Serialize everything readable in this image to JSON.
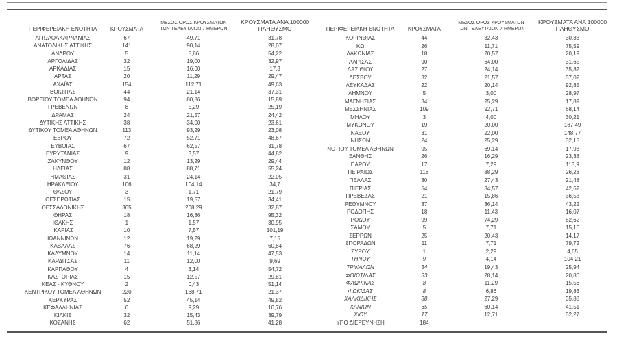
{
  "page": {
    "background": "#ffffff",
    "text_color": "#3c3c3c",
    "rule_dark_color": "#555555",
    "rule_gray_color": "#a8a8a8"
  },
  "headers": {
    "region": "ΠΕΡΙΦΕΡΕΙΑΚΗ ΕΝΟΤΗΤΑ",
    "cases": "ΚΡΟΥΣΜΑΤΑ",
    "avg7_line1": "ΜΕΣΟΣ ΟΡΟΣ ΚΡΟΥΣΜΑΤΩΝ",
    "avg7_line2": "ΤΩΝ ΤΕΛΕΥΤΑΙΩΝ 7 ΗΜΕΡΩΝ",
    "per100k_line1": "ΚΡΟΥΣΜΑΤΑ ΑΝΑ 100000",
    "per100k_line2": "ΠΛΗΘΥΣΜΟ"
  },
  "left_table": {
    "rows": [
      {
        "name": "ΑΙΤΩΛΟΑΚΑΡΝΑΝΙΑΣ",
        "cases": "67",
        "avg7": "49,71",
        "per100k": "31,78",
        "italic": false
      },
      {
        "name": "ΑΝΑΤΟΛΙΚΗΣ ΑΤΤΙΚΗΣ",
        "cases": "141",
        "avg7": "90,14",
        "per100k": "28,07",
        "italic": false
      },
      {
        "name": "ΑΝΔΡΟΥ",
        "cases": "5",
        "avg7": "5,86",
        "per100k": "54,22",
        "italic": false
      },
      {
        "name": "ΑΡΓΟΛΙΔΑΣ",
        "cases": "32",
        "avg7": "19,00",
        "per100k": "32,97",
        "italic": false
      },
      {
        "name": "ΑΡΚΑΔΙΑΣ",
        "cases": "15",
        "avg7": "16,00",
        "per100k": "17,3",
        "italic": false
      },
      {
        "name": "ΑΡΤΑΣ",
        "cases": "20",
        "avg7": "11,29",
        "per100k": "29,47",
        "italic": false
      },
      {
        "name": "ΑΧΑΪΑΣ",
        "cases": "154",
        "avg7": "112,71",
        "per100k": "49,63",
        "italic": false
      },
      {
        "name": "ΒΟΙΩΤΙΑΣ",
        "cases": "44",
        "avg7": "21,14",
        "per100k": "37,31",
        "italic": false
      },
      {
        "name": "ΒΟΡΕΙΟΥ ΤΟΜΕΑ ΑΘΗΝΩΝ",
        "cases": "94",
        "avg7": "80,86",
        "per100k": "15,89",
        "italic": false
      },
      {
        "name": "ΓΡΕΒΕΝΩΝ",
        "cases": "8",
        "avg7": "5,29",
        "per100k": "25,19",
        "italic": false
      },
      {
        "name": "ΔΡΑΜΑΣ",
        "cases": "24",
        "avg7": "21,57",
        "per100k": "24,42",
        "italic": false
      },
      {
        "name": "ΔΥΤΙΚΗΣ ΑΤΤΙΚΗΣ",
        "cases": "38",
        "avg7": "34,00",
        "per100k": "23,61",
        "italic": false
      },
      {
        "name": "ΔΥΤΙΚΟΥ ΤΟΜΕΑ ΑΘΗΝΩΝ",
        "cases": "113",
        "avg7": "93,29",
        "per100k": "23,08",
        "italic": false
      },
      {
        "name": "ΕΒΡΟΥ",
        "cases": "72",
        "avg7": "52,71",
        "per100k": "48,67",
        "italic": false
      },
      {
        "name": "ΕΥΒΟΙΑΣ",
        "cases": "67",
        "avg7": "62,57",
        "per100k": "31,78",
        "italic": false
      },
      {
        "name": "ΕΥΡΥΤΑΝΙΑΣ",
        "cases": "9",
        "avg7": "3,57",
        "per100k": "44,82",
        "italic": false
      },
      {
        "name": "ΖΑΚΥΝΘΟΥ",
        "cases": "12",
        "avg7": "13,29",
        "per100k": "29,44",
        "italic": false
      },
      {
        "name": "ΗΛΕΙΑΣ",
        "cases": "88",
        "avg7": "88,71",
        "per100k": "55,24",
        "italic": false
      },
      {
        "name": "ΗΜΑΘΙΑΣ",
        "cases": "31",
        "avg7": "24,14",
        "per100k": "22,05",
        "italic": false
      },
      {
        "name": "ΗΡΑΚΛΕΙΟΥ",
        "cases": "106",
        "avg7": "104,14",
        "per100k": "34,7",
        "italic": false
      },
      {
        "name": "ΘΑΣΟΥ",
        "cases": "3",
        "avg7": "1,71",
        "per100k": "21,79",
        "italic": false
      },
      {
        "name": "ΘΕΣΠΡΩΤΙΑΣ",
        "cases": "15",
        "avg7": "19,57",
        "per100k": "34,41",
        "italic": false
      },
      {
        "name": "ΘΕΣΣΑΛΟΝΙΚΗΣ",
        "cases": "365",
        "avg7": "268,29",
        "per100k": "32,87",
        "italic": false
      },
      {
        "name": "ΘΗΡΑΣ",
        "cases": "18",
        "avg7": "16,86",
        "per100k": "95,32",
        "italic": false
      },
      {
        "name": "ΙΘΑΚΗΣ",
        "cases": "1",
        "avg7": "1,57",
        "per100k": "30,95",
        "italic": false
      },
      {
        "name": "ΙΚΑΡΙΑΣ",
        "cases": "10",
        "avg7": "7,57",
        "per100k": "101,19",
        "italic": false
      },
      {
        "name": "ΙΩΑΝΝΙΝΩΝ",
        "cases": "12",
        "avg7": "19,29",
        "per100k": "7,15",
        "italic": false
      },
      {
        "name": "ΚΑΒΑΛΑΣ",
        "cases": "76",
        "avg7": "68,29",
        "per100k": "60,84",
        "italic": false
      },
      {
        "name": "ΚΑΛΥΜΝΟΥ",
        "cases": "14",
        "avg7": "11,14",
        "per100k": "47,53",
        "italic": false
      },
      {
        "name": "ΚΑΡΔΙΤΣΑΣ",
        "cases": "11",
        "avg7": "12,00",
        "per100k": "9,69",
        "italic": false
      },
      {
        "name": "ΚΑΡΠΑΘΟΥ",
        "cases": "4",
        "avg7": "3,14",
        "per100k": "54,72",
        "italic": false
      },
      {
        "name": "ΚΑΣΤΟΡΙΑΣ",
        "cases": "15",
        "avg7": "12,57",
        "per100k": "29,81",
        "italic": false
      },
      {
        "name": "ΚΕΑΣ - ΚΥΘΝΟΥ",
        "cases": "2",
        "avg7": "0,43",
        "per100k": "51,14",
        "italic": false
      },
      {
        "name": "ΚΕΝΤΡΙΚΟΥ ΤΟΜΕΑ ΑΘΗΝΩΝ",
        "cases": "220",
        "avg7": "168,71",
        "per100k": "21,37",
        "italic": false
      },
      {
        "name": "ΚΕΡΚΥΡΑΣ",
        "cases": "52",
        "avg7": "45,14",
        "per100k": "49,82",
        "italic": false
      },
      {
        "name": "ΚΕΦΑΛΛΗΝΙΑΣ",
        "cases": "6",
        "avg7": "9,29",
        "per100k": "16,76",
        "italic": false
      },
      {
        "name": "ΚΙΛΚΙΣ",
        "cases": "32",
        "avg7": "15,43",
        "per100k": "39,79",
        "italic": false
      },
      {
        "name": "ΚΟΖΑΝΗΣ",
        "cases": "62",
        "avg7": "51,86",
        "per100k": "41,28",
        "italic": false
      }
    ]
  },
  "right_table": {
    "rows": [
      {
        "name": "ΚΟΡΙΝΘΙΑΣ",
        "cases": "44",
        "avg7": "32,43",
        "per100k": "30,33",
        "italic": false
      },
      {
        "name": "ΚΩ",
        "cases": "26",
        "avg7": "11,71",
        "per100k": "75,59",
        "italic": false
      },
      {
        "name": "ΛΑΚΩΝΙΑΣ",
        "cases": "18",
        "avg7": "20,57",
        "per100k": "20,19",
        "italic": false
      },
      {
        "name": "ΛΑΡΙΣΑΣ",
        "cases": "90",
        "avg7": "64,00",
        "per100k": "31,65",
        "italic": false
      },
      {
        "name": "ΛΑΣΙΘΙΟΥ",
        "cases": "27",
        "avg7": "24,14",
        "per100k": "35,82",
        "italic": false
      },
      {
        "name": "ΛΕΣΒΟΥ",
        "cases": "32",
        "avg7": "21,57",
        "per100k": "37,02",
        "italic": false
      },
      {
        "name": "ΛΕΥΚΑΔΑΣ",
        "cases": "22",
        "avg7": "20,14",
        "per100k": "92,85",
        "italic": false
      },
      {
        "name": "ΛΗΜΝΟΥ",
        "cases": "5",
        "avg7": "3,00",
        "per100k": "28,97",
        "italic": false
      },
      {
        "name": "ΜΑΓΝΗΣΙΑΣ",
        "cases": "34",
        "avg7": "25,29",
        "per100k": "17,89",
        "italic": false
      },
      {
        "name": "ΜΕΣΣΗΝΙΑΣ",
        "cases": "109",
        "avg7": "92,71",
        "per100k": "68,14",
        "italic": false
      },
      {
        "name": "ΜΗΛΟΥ",
        "cases": "3",
        "avg7": "4,00",
        "per100k": "30,21",
        "italic": false
      },
      {
        "name": "ΜΥΚΟΝΟΥ",
        "cases": "19",
        "avg7": "20,00",
        "per100k": "187,49",
        "italic": false
      },
      {
        "name": "ΝΑΞΟΥ",
        "cases": "31",
        "avg7": "22,00",
        "per100k": "148,77",
        "italic": false
      },
      {
        "name": "ΝΗΣΩΝ",
        "cases": "24",
        "avg7": "25,29",
        "per100k": "32,15",
        "italic": false
      },
      {
        "name": "ΝΟΤΙΟΥ ΤΟΜΕΑ ΑΘΗΝΩΝ",
        "cases": "95",
        "avg7": "69,14",
        "per100k": "17,93",
        "italic": false
      },
      {
        "name": "ΞΑΝΘΗΣ",
        "cases": "26",
        "avg7": "16,29",
        "per100k": "23,38",
        "italic": false
      },
      {
        "name": "ΠΑΡΟΥ",
        "cases": "17",
        "avg7": "7,29",
        "per100k": "113,9",
        "italic": false
      },
      {
        "name": "ΠΕΙΡΑΙΩΣ",
        "cases": "118",
        "avg7": "88,29",
        "per100k": "26,28",
        "italic": false
      },
      {
        "name": "ΠΕΛΛΑΣ",
        "cases": "30",
        "avg7": "27,43",
        "per100k": "21,48",
        "italic": false
      },
      {
        "name": "ΠΙΕΡΙΑΣ",
        "cases": "54",
        "avg7": "34,57",
        "per100k": "42,62",
        "italic": false
      },
      {
        "name": "ΠΡΕΒΕΖΑΣ",
        "cases": "21",
        "avg7": "15,86",
        "per100k": "36,53",
        "italic": false
      },
      {
        "name": "ΡΕΘΥΜΝΟΥ",
        "cases": "37",
        "avg7": "36,14",
        "per100k": "43,22",
        "italic": false
      },
      {
        "name": "ΡΟΔΟΠΗΣ",
        "cases": "18",
        "avg7": "11,43",
        "per100k": "16,07",
        "italic": false
      },
      {
        "name": "ΡΟΔΟΥ",
        "cases": "99",
        "avg7": "74,29",
        "per100k": "82,62",
        "italic": false
      },
      {
        "name": "ΣΑΜΟΥ",
        "cases": "5",
        "avg7": "7,71",
        "per100k": "15,16",
        "italic": false
      },
      {
        "name": "ΣΕΡΡΩΝ",
        "cases": "25",
        "avg7": "20,43",
        "per100k": "14,17",
        "italic": false
      },
      {
        "name": "ΣΠΟΡΑΔΩΝ",
        "cases": "11",
        "avg7": "7,71",
        "per100k": "79,72",
        "italic": false
      },
      {
        "name": "ΣΥΡΟΥ",
        "cases": "1",
        "avg7": "2,29",
        "per100k": "4,65",
        "italic": false
      },
      {
        "name": "ΤΗΝΟΥ",
        "cases": "9",
        "avg7": "4,14",
        "per100k": "104,21",
        "italic": true
      },
      {
        "name": "ΤΡΙΚΑΛΩΝ",
        "cases": "34",
        "avg7": "19,43",
        "per100k": "25,94",
        "italic": true
      },
      {
        "name": "ΦΘΙΩΤΙΔΑΣ",
        "cases": "33",
        "avg7": "28,14",
        "per100k": "20,86",
        "italic": true
      },
      {
        "name": "ΦΛΩΡΙΝΑΣ",
        "cases": "8",
        "avg7": "11,29",
        "per100k": "15,56",
        "italic": true
      },
      {
        "name": "ΦΩΚΙΔΑΣ",
        "cases": "8",
        "avg7": "6,86",
        "per100k": "19,83",
        "italic": true
      },
      {
        "name": "ΧΑΛΚΙΔΙΚΗΣ",
        "cases": "38",
        "avg7": "27,29",
        "per100k": "35,88",
        "italic": true
      },
      {
        "name": "ΧΑΝΙΩΝ",
        "cases": "65",
        "avg7": "60,14",
        "per100k": "41,51",
        "italic": true
      },
      {
        "name": "ΧΙΟΥ",
        "cases": "17",
        "avg7": "12,71",
        "per100k": "32,27",
        "italic": true
      },
      {
        "name": "ΥΠΟ ΔΙΕΡΕΥΝΗΣΗ",
        "cases": "184",
        "avg7": "",
        "per100k": "",
        "italic": false
      }
    ]
  }
}
